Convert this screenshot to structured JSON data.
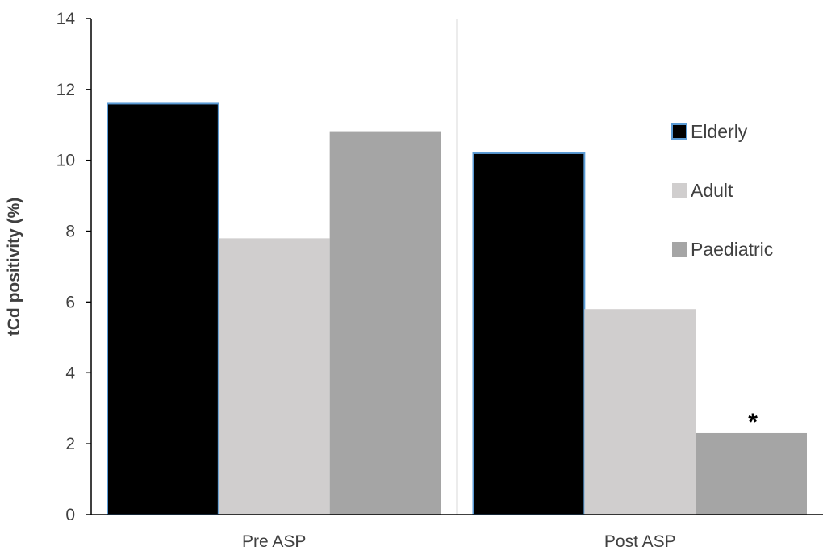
{
  "chart_data": {
    "type": "bar",
    "title": "",
    "xlabel": "",
    "ylabel": "tCd positivity (%)",
    "ylim": [
      0,
      14
    ],
    "yticks": [
      0,
      2,
      4,
      6,
      8,
      10,
      12,
      14
    ],
    "grid": false,
    "legend_position": "right",
    "categories": [
      "Pre ASP",
      "Post ASP"
    ],
    "series": [
      {
        "name": "Elderly",
        "values": [
          11.6,
          10.2
        ],
        "color": "#000000",
        "stroke": "#5b9bd5"
      },
      {
        "name": "Adult",
        "values": [
          7.8,
          5.8
        ],
        "color": "#d0cece",
        "stroke": "none"
      },
      {
        "name": "Paediatric",
        "values": [
          10.8,
          2.3
        ],
        "color": "#a5a5a5",
        "stroke": "none"
      }
    ],
    "annotations": [
      {
        "text": "*",
        "series": "Paediatric",
        "category": "Post ASP"
      }
    ]
  }
}
